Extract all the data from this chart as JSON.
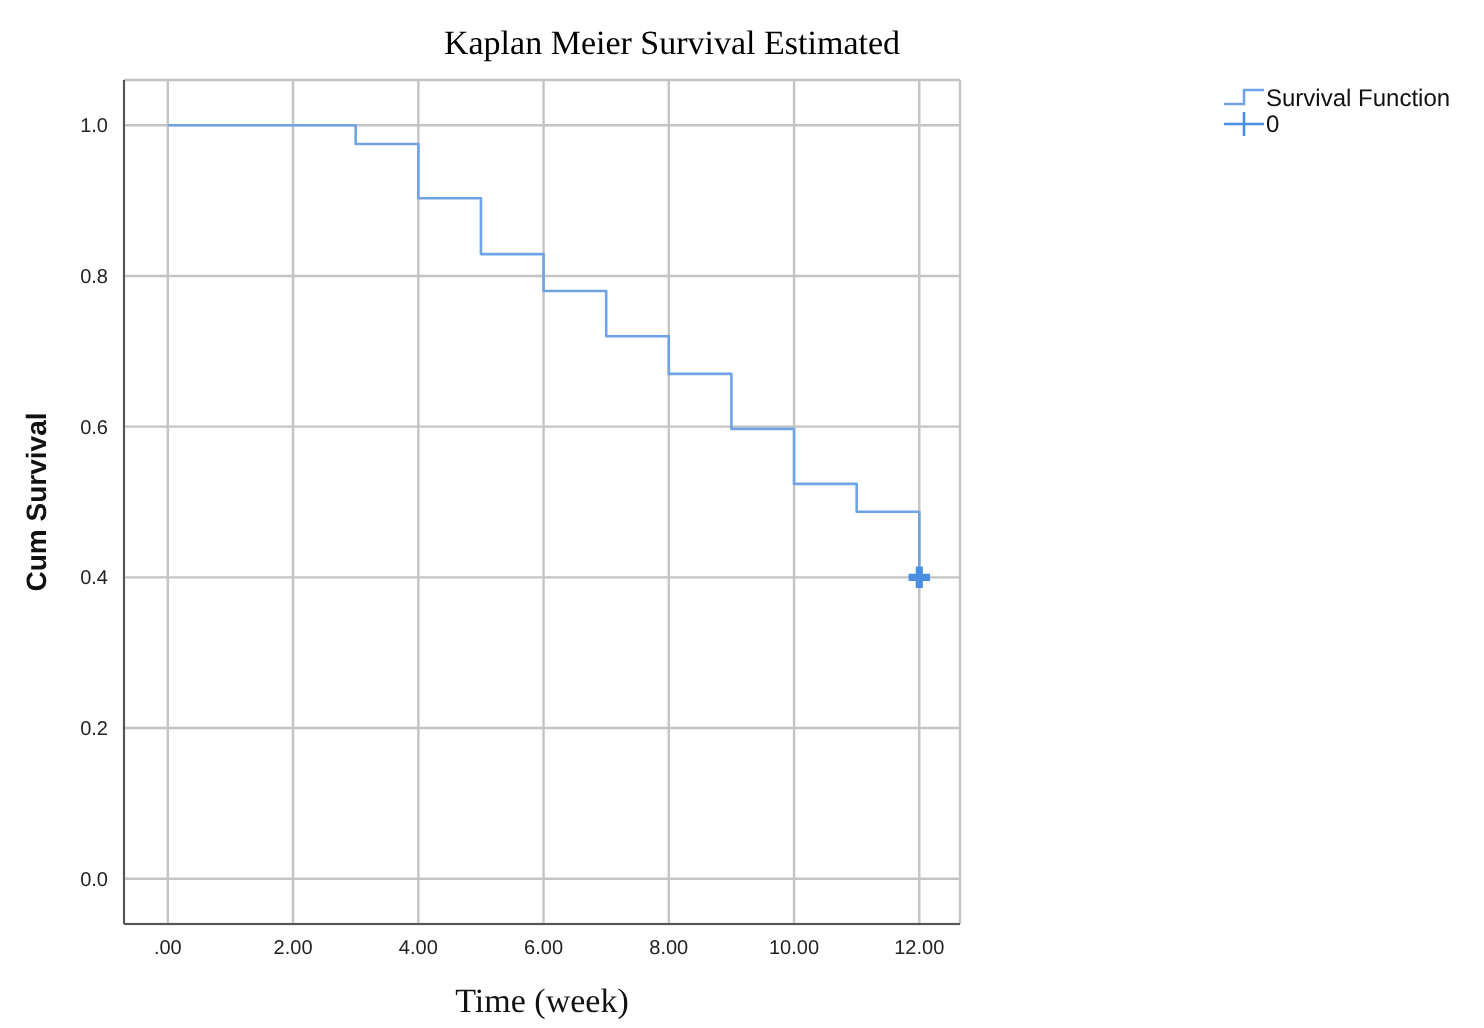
{
  "chart_data": {
    "type": "step",
    "title": "Kaplan Meier Survival Estimated",
    "xlabel": "Time (week)",
    "ylabel": "Cum Survival",
    "xlim": [
      -0.7,
      12.65
    ],
    "xticks": [
      {
        "value": 0,
        "label": ".00"
      },
      {
        "value": 2,
        "label": "2.00"
      },
      {
        "value": 4,
        "label": "4.00"
      },
      {
        "value": 6,
        "label": "6.00"
      },
      {
        "value": 8,
        "label": "8.00"
      },
      {
        "value": 10,
        "label": "10.00"
      },
      {
        "value": 12,
        "label": "12.00"
      }
    ],
    "ylim": [
      -0.06,
      1.06
    ],
    "yticks": [
      {
        "value": 0,
        "label": "0.0"
      },
      {
        "value": 0.2,
        "label": "0.2"
      },
      {
        "value": 0.4,
        "label": "0.4"
      },
      {
        "value": 0.6,
        "label": "0.6"
      },
      {
        "value": 0.8,
        "label": "0.8"
      },
      {
        "value": 1,
        "label": "1.0"
      }
    ],
    "grid": true,
    "legend": "top right",
    "series": [
      {
        "name": "Survival Function",
        "type": "step",
        "color": "#6fa3e6",
        "x": [
          0,
          3,
          4,
          5,
          6,
          7,
          8,
          9,
          10,
          11,
          12
        ],
        "values": [
          1,
          0.975,
          0.903,
          0.829,
          0.78,
          0.72,
          0.67,
          0.597,
          0.524,
          0.487,
          0.4
        ]
      },
      {
        "name": "0",
        "type": "scatter",
        "marker": "cross",
        "color": "#4a8ee0",
        "x": [
          12
        ],
        "values": [
          0.4
        ]
      }
    ]
  }
}
